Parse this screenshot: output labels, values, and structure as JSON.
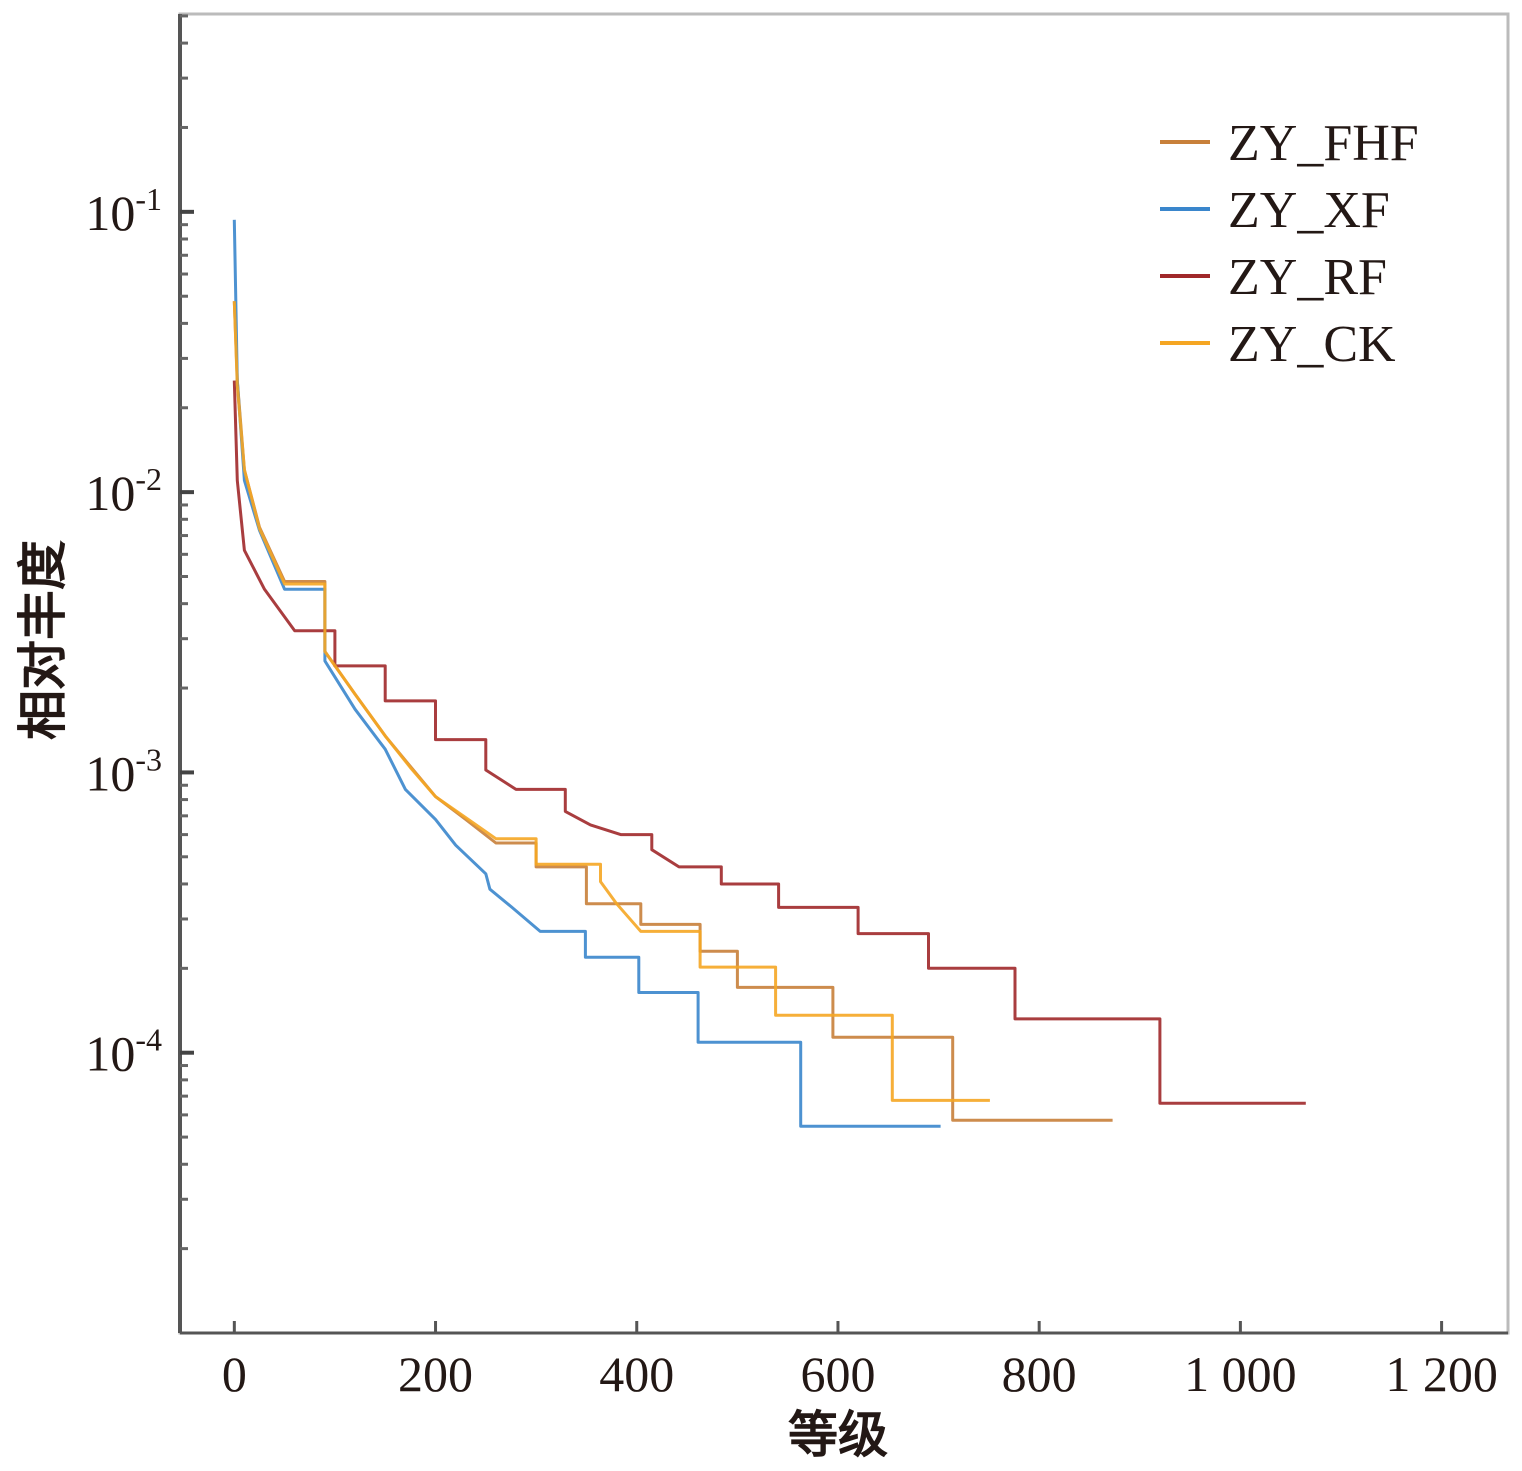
{
  "chart_data": {
    "type": "line",
    "title": "",
    "xlabel": "等级",
    "ylabel": "相对丰度",
    "xlim": [
      -54,
      1266
    ],
    "ylim": [
      1e-05,
      0.508
    ],
    "yscale": "log",
    "grid": false,
    "legend_position": "top-right",
    "x_ticks": [
      {
        "value": 0,
        "label": "0"
      },
      {
        "value": 200,
        "label": "200"
      },
      {
        "value": 400,
        "label": "400"
      },
      {
        "value": 600,
        "label": "600"
      },
      {
        "value": 800,
        "label": "800"
      },
      {
        "value": 1000,
        "label": "1 000"
      },
      {
        "value": 1200,
        "label": "1 200"
      }
    ],
    "y_ticks": [
      {
        "value": 0.1,
        "base": "10",
        "exp": "-1"
      },
      {
        "value": 0.01,
        "base": "10",
        "exp": "-2"
      },
      {
        "value": 0.001,
        "base": "10",
        "exp": "-3"
      },
      {
        "value": 0.0001,
        "base": "10",
        "exp": "-4"
      }
    ],
    "series": [
      {
        "name": "ZY_FHF",
        "color": "#c8803a",
        "points": [
          [
            0,
            0.048
          ],
          [
            3,
            0.025
          ],
          [
            10,
            0.012
          ],
          [
            25,
            0.0075
          ],
          [
            50,
            0.0048
          ],
          [
            90,
            0.0027
          ],
          [
            120,
            0.0019
          ],
          [
            150,
            0.00135
          ],
          [
            175,
            0.00105
          ],
          [
            200,
            0.00082
          ],
          [
            230,
            0.00068
          ],
          [
            260,
            0.00056
          ],
          [
            300,
            0.00046
          ],
          [
            350,
            0.00034
          ],
          [
            404,
            0.000287
          ],
          [
            463,
            0.00023
          ],
          [
            500,
            0.000171
          ],
          [
            595,
            0.0001135
          ],
          [
            714,
            5.74e-05
          ],
          [
            873,
            5.74e-05
          ]
        ]
      },
      {
        "name": "ZY_XF",
        "color": "#3a86cc",
        "points": [
          [
            0,
            0.0937
          ],
          [
            3,
            0.025
          ],
          [
            10,
            0.011
          ],
          [
            25,
            0.0073
          ],
          [
            50,
            0.0045
          ],
          [
            90,
            0.0025
          ],
          [
            120,
            0.00168
          ],
          [
            150,
            0.00121
          ],
          [
            170,
            0.00087
          ],
          [
            200,
            0.00068
          ],
          [
            220,
            0.00055
          ],
          [
            250,
            0.000435
          ],
          [
            254,
            0.000383
          ],
          [
            276,
            0.00033
          ],
          [
            304,
            0.000271
          ],
          [
            349,
            0.000219
          ],
          [
            402,
            0.000164
          ],
          [
            461,
            0.000109
          ],
          [
            563,
            5.47e-05
          ],
          [
            702,
            5.47e-05
          ]
        ]
      },
      {
        "name": "ZY_RF",
        "color": "#a0282a",
        "points": [
          [
            0,
            0.025
          ],
          [
            3,
            0.011
          ],
          [
            10,
            0.0062
          ],
          [
            30,
            0.0045
          ],
          [
            60,
            0.0032
          ],
          [
            100,
            0.0024
          ],
          [
            150,
            0.0018
          ],
          [
            200,
            0.00131
          ],
          [
            250,
            0.00102
          ],
          [
            280,
            0.00087
          ],
          [
            329,
            0.000726
          ],
          [
            354,
            0.00065
          ],
          [
            384,
            0.0006
          ],
          [
            415,
            0.00053
          ],
          [
            442,
            0.00046
          ],
          [
            484,
            0.0004
          ],
          [
            541,
            0.00033
          ],
          [
            620,
            0.000266
          ],
          [
            690,
            0.0002
          ],
          [
            776,
            0.000132
          ],
          [
            920,
            6.6e-05
          ],
          [
            1065,
            6.6e-05
          ]
        ]
      },
      {
        "name": "ZY_CK",
        "color": "#f5a623",
        "points": [
          [
            0,
            0.048
          ],
          [
            3,
            0.024
          ],
          [
            10,
            0.012
          ],
          [
            25,
            0.0074
          ],
          [
            50,
            0.0047
          ],
          [
            90,
            0.0027
          ],
          [
            120,
            0.0019
          ],
          [
            150,
            0.00135
          ],
          [
            175,
            0.00104
          ],
          [
            200,
            0.00082
          ],
          [
            230,
            0.00069
          ],
          [
            260,
            0.00058
          ],
          [
            300,
            0.00047
          ],
          [
            364,
            0.000408
          ],
          [
            380,
            0.00034
          ],
          [
            404,
            0.000271
          ],
          [
            463,
            0.000202
          ],
          [
            538,
            0.000136
          ],
          [
            654,
            6.76e-05
          ],
          [
            751,
            6.76e-05
          ]
        ]
      }
    ]
  }
}
